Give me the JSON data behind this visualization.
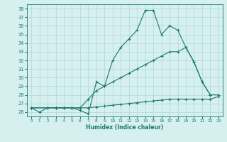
{
  "line1_x": [
    0,
    1,
    2,
    3,
    4,
    5,
    6,
    7,
    8,
    9,
    10,
    11,
    12,
    13,
    14,
    15,
    16,
    17,
    18,
    19,
    20,
    21,
    22
  ],
  "line1_y": [
    26.5,
    26.0,
    26.5,
    26.5,
    26.5,
    26.5,
    26.2,
    25.8,
    29.5,
    29.0,
    32.0,
    33.5,
    34.5,
    35.5,
    37.8,
    37.8,
    35.0,
    36.0,
    35.5,
    33.5,
    31.8,
    29.5,
    28.0
  ],
  "line2_x": [
    0,
    2,
    3,
    4,
    5,
    6,
    7,
    8,
    9,
    10,
    11,
    12,
    13,
    14,
    15,
    16,
    17,
    18,
    19,
    20,
    21,
    22,
    23
  ],
  "line2_y": [
    26.5,
    26.5,
    26.5,
    26.5,
    26.5,
    26.5,
    27.5,
    28.5,
    29.0,
    29.5,
    30.0,
    30.5,
    31.0,
    31.5,
    32.0,
    32.5,
    33.0,
    33.0,
    33.5,
    31.8,
    29.5,
    28.0,
    28.0
  ],
  "line3_x": [
    0,
    2,
    3,
    4,
    5,
    6,
    7,
    8,
    9,
    10,
    11,
    12,
    13,
    14,
    15,
    16,
    17,
    18,
    19,
    20,
    21,
    22,
    23
  ],
  "line3_y": [
    26.5,
    26.5,
    26.5,
    26.5,
    26.5,
    26.5,
    26.5,
    26.6,
    26.7,
    26.8,
    26.9,
    27.0,
    27.1,
    27.2,
    27.3,
    27.4,
    27.5,
    27.5,
    27.5,
    27.5,
    27.5,
    27.5,
    27.8
  ],
  "color": "#1a7a6e",
  "bg_color": "#d6efef",
  "grid_color": "#b0d8d8",
  "xlabel": "Humidex (Indice chaleur)",
  "ylim": [
    25.5,
    38.5
  ],
  "xlim": [
    -0.5,
    23.5
  ],
  "yticks": [
    26,
    27,
    28,
    29,
    30,
    31,
    32,
    33,
    34,
    35,
    36,
    37,
    38
  ],
  "xticks": [
    0,
    1,
    2,
    3,
    4,
    5,
    6,
    7,
    8,
    9,
    10,
    11,
    12,
    13,
    14,
    15,
    16,
    17,
    18,
    19,
    20,
    21,
    22,
    23
  ]
}
